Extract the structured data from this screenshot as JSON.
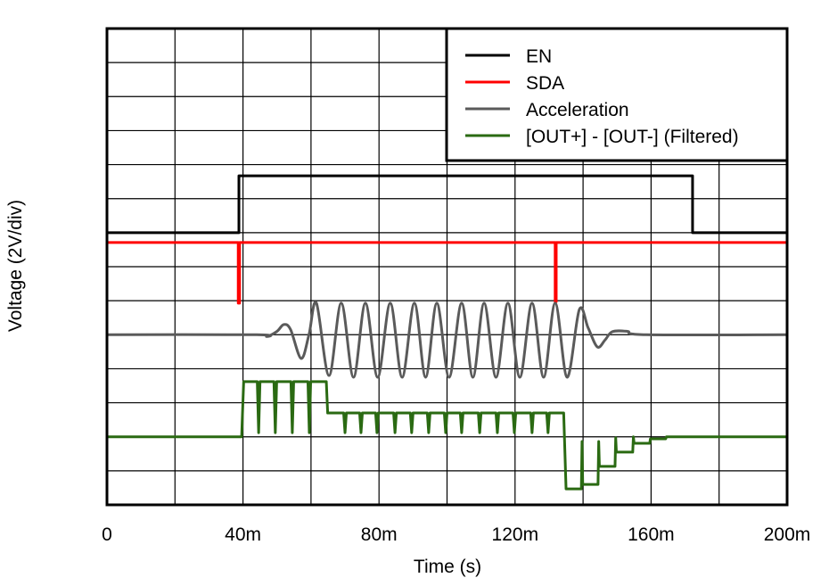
{
  "chart_data": {
    "type": "line",
    "xlabel": "Time (s)",
    "ylabel": "Voltage (2V/div)",
    "xlim": [
      0,
      0.2
    ],
    "ylim_div": [
      0,
      14
    ],
    "grid": true,
    "legend_position": "top-right",
    "x_ticks": [
      0,
      0.04,
      0.08,
      0.12,
      0.16,
      0.2
    ],
    "x_tick_labels": [
      "0",
      "40m",
      "80m",
      "120m",
      "160m",
      "200m"
    ],
    "series": [
      {
        "name": "EN",
        "color": "#000000",
        "points": [
          [
            0,
            8
          ],
          [
            0.0388,
            8
          ],
          [
            0.0388,
            9.67
          ],
          [
            0.1722,
            9.67
          ],
          [
            0.1722,
            8
          ],
          [
            0.2,
            8
          ]
        ]
      },
      {
        "name": "SDA",
        "color": "#ff0000",
        "points": [
          [
            0,
            7.71
          ],
          [
            0.0386,
            7.71
          ],
          [
            0.0386,
            5.93
          ],
          [
            0.039,
            5.93
          ],
          [
            0.039,
            7.71
          ],
          [
            0.1318,
            7.71
          ],
          [
            0.1318,
            5.97
          ],
          [
            0.1321,
            5.97
          ],
          [
            0.1321,
            7.71
          ],
          [
            0.2,
            7.71
          ]
        ]
      },
      {
        "name": "Acceleration",
        "color": "#5a5a5a",
        "smooth": true,
        "points": [
          [
            0,
            5
          ],
          [
            0.044,
            5
          ],
          [
            0.047,
            4.95
          ],
          [
            0.05,
            5.1
          ],
          [
            0.052,
            5.3
          ],
          [
            0.054,
            5.15
          ],
          [
            0.0571,
            4.3
          ],
          [
            0.0594,
            5.0
          ],
          [
            0.0616,
            5.93
          ],
          [
            0.0653,
            3.8
          ],
          [
            0.0689,
            5.93
          ],
          [
            0.0725,
            3.75
          ],
          [
            0.076,
            5.93
          ],
          [
            0.0796,
            3.75
          ],
          [
            0.0833,
            5.93
          ],
          [
            0.0868,
            3.75
          ],
          [
            0.0904,
            5.93
          ],
          [
            0.0937,
            3.75
          ],
          [
            0.097,
            5.93
          ],
          [
            0.1006,
            3.75
          ],
          [
            0.1043,
            5.93
          ],
          [
            0.1076,
            3.75
          ],
          [
            0.1109,
            5.93
          ],
          [
            0.1144,
            3.75
          ],
          [
            0.1179,
            5.93
          ],
          [
            0.1214,
            3.75
          ],
          [
            0.125,
            5.93
          ],
          [
            0.1284,
            3.75
          ],
          [
            0.1318,
            5.93
          ],
          [
            0.1353,
            3.75
          ],
          [
            0.1389,
            5.74
          ],
          [
            0.1415,
            5.2
          ],
          [
            0.1442,
            4.64
          ],
          [
            0.1465,
            4.85
          ],
          [
            0.1486,
            5.09
          ],
          [
            0.153,
            5.1
          ],
          [
            0.1586,
            5.0
          ],
          [
            0.2,
            5.0
          ]
        ]
      },
      {
        "name": "[OUT+] - [OUT-] (Filtered)",
        "color": "#2a6a12",
        "points": [
          [
            0,
            2
          ],
          [
            0.0396,
            2
          ],
          [
            0.0402,
            3.62
          ],
          [
            0.0442,
            3.62
          ],
          [
            0.0446,
            2.12
          ],
          [
            0.045,
            3.62
          ],
          [
            0.0491,
            3.62
          ],
          [
            0.0495,
            2.12
          ],
          [
            0.0499,
            3.62
          ],
          [
            0.0541,
            3.62
          ],
          [
            0.0545,
            2.12
          ],
          [
            0.0549,
            3.62
          ],
          [
            0.0591,
            3.62
          ],
          [
            0.0595,
            2.12
          ],
          [
            0.0599,
            3.62
          ],
          [
            0.0645,
            3.62
          ],
          [
            0.0649,
            2.7
          ],
          [
            0.0696,
            2.7
          ],
          [
            0.07,
            2.12
          ],
          [
            0.0704,
            2.7
          ],
          [
            0.0743,
            2.7
          ],
          [
            0.0747,
            2.12
          ],
          [
            0.0751,
            2.7
          ],
          [
            0.079,
            2.7
          ],
          [
            0.0794,
            2.12
          ],
          [
            0.0798,
            2.7
          ],
          [
            0.0843,
            2.7
          ],
          [
            0.0847,
            2.12
          ],
          [
            0.0851,
            2.7
          ],
          [
            0.0892,
            2.7
          ],
          [
            0.0896,
            2.12
          ],
          [
            0.09,
            2.7
          ],
          [
            0.0942,
            2.7
          ],
          [
            0.0946,
            2.12
          ],
          [
            0.095,
            2.7
          ],
          [
            0.0992,
            2.7
          ],
          [
            0.0996,
            2.12
          ],
          [
            0.1,
            2.7
          ],
          [
            0.1039,
            2.7
          ],
          [
            0.1043,
            2.12
          ],
          [
            0.1047,
            2.7
          ],
          [
            0.1092,
            2.7
          ],
          [
            0.1096,
            2.12
          ],
          [
            0.11,
            2.7
          ],
          [
            0.1144,
            2.7
          ],
          [
            0.1148,
            2.12
          ],
          [
            0.1152,
            2.7
          ],
          [
            0.1194,
            2.7
          ],
          [
            0.1198,
            2.12
          ],
          [
            0.1202,
            2.7
          ],
          [
            0.1246,
            2.7
          ],
          [
            0.125,
            2.12
          ],
          [
            0.1254,
            2.7
          ],
          [
            0.1293,
            2.7
          ],
          [
            0.1297,
            2.12
          ],
          [
            0.1301,
            2.7
          ],
          [
            0.1343,
            2.7
          ],
          [
            0.135,
            0.47
          ],
          [
            0.1395,
            0.47
          ],
          [
            0.1397,
            1.86
          ],
          [
            0.1399,
            0.6
          ],
          [
            0.1444,
            0.6
          ],
          [
            0.1446,
            1.86
          ],
          [
            0.1448,
            1.13
          ],
          [
            0.1494,
            1.13
          ],
          [
            0.1496,
            1.97
          ],
          [
            0.1498,
            1.55
          ],
          [
            0.1546,
            1.55
          ],
          [
            0.1548,
            2.0
          ],
          [
            0.155,
            1.81
          ],
          [
            0.1596,
            1.81
          ],
          [
            0.1598,
            1.94
          ],
          [
            0.1643,
            1.94
          ],
          [
            0.1645,
            2.0
          ],
          [
            0.2,
            2.0
          ]
        ]
      }
    ]
  }
}
